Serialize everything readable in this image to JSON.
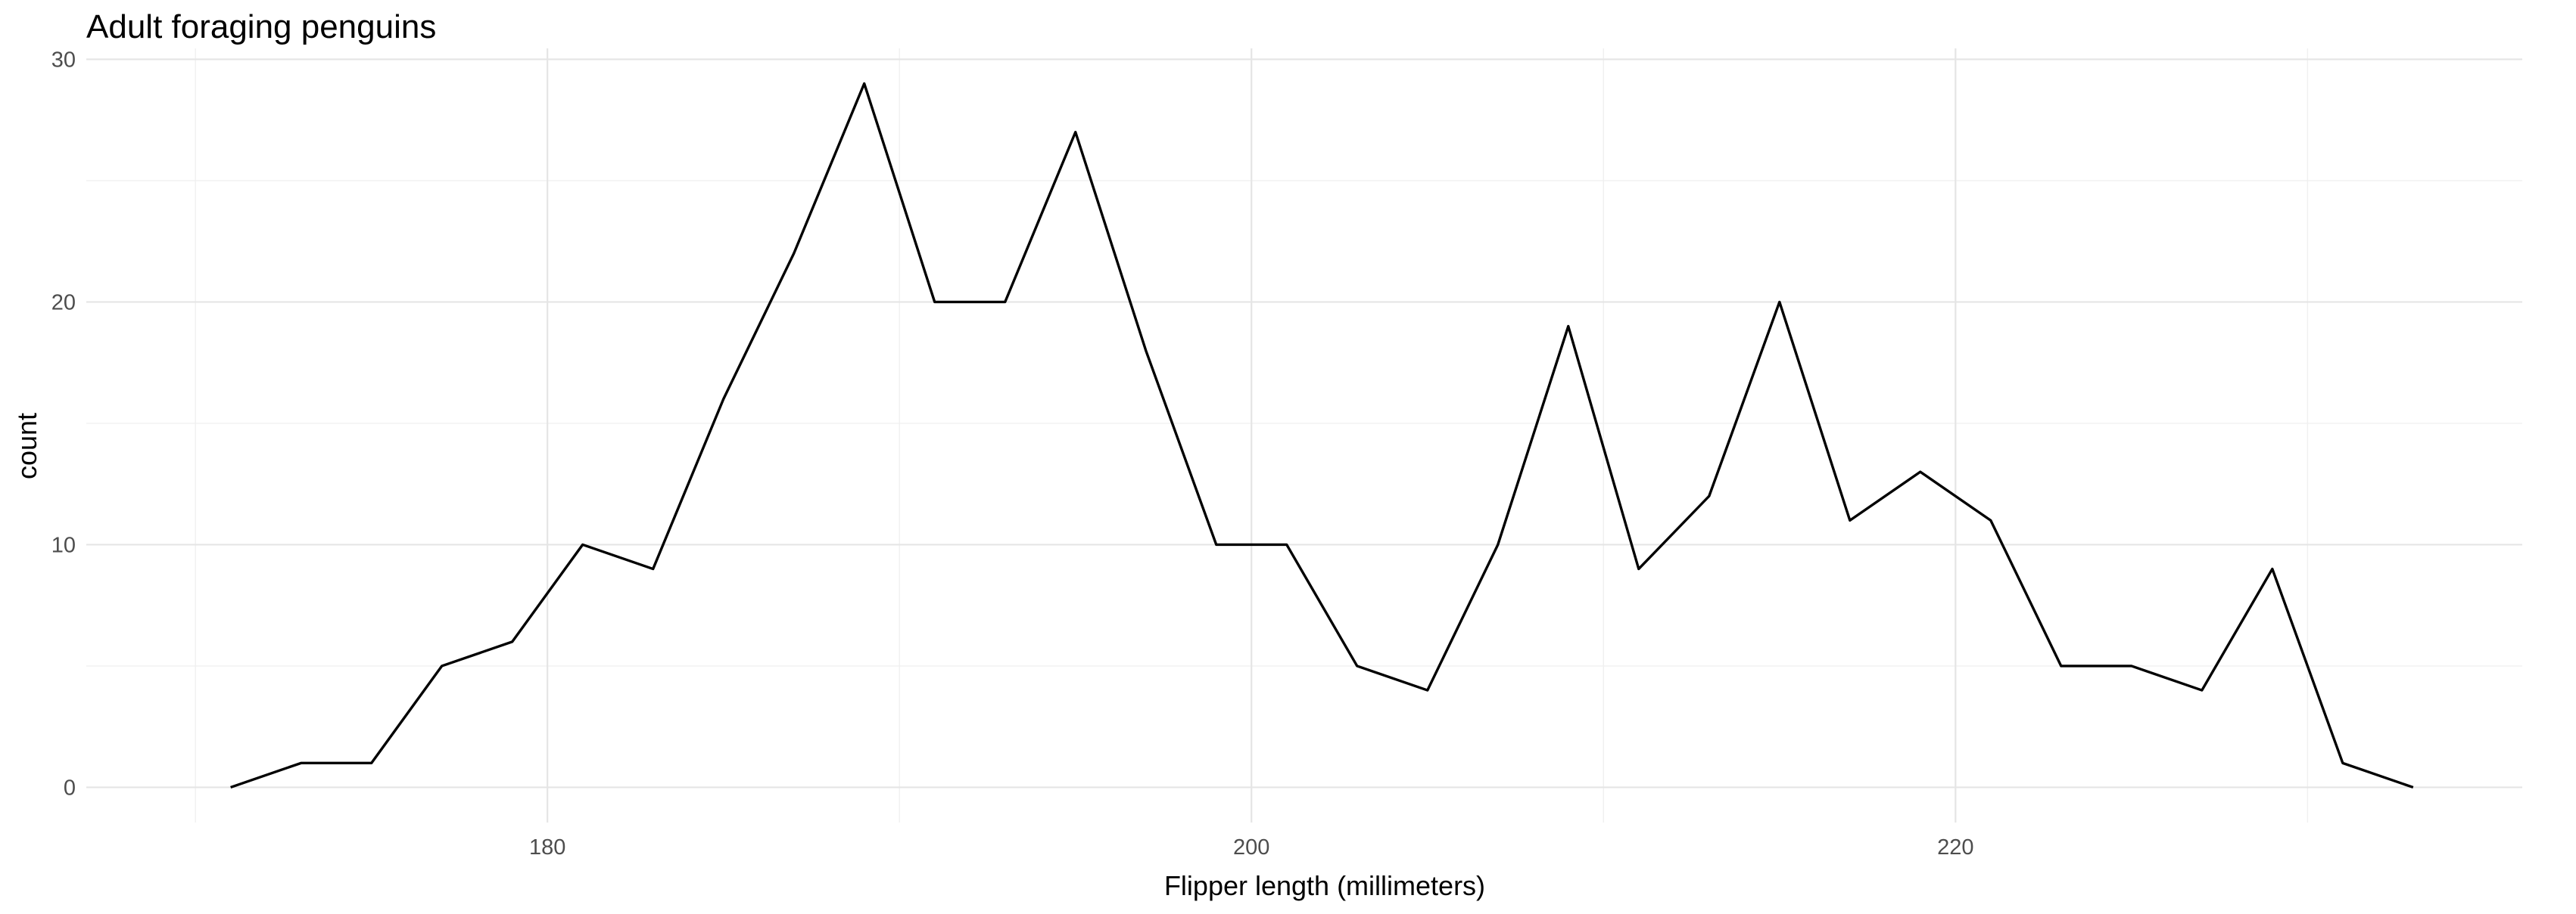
{
  "chart_data": {
    "type": "line",
    "title": "Adult foraging penguins",
    "xlabel": "Flipper length (millimeters)",
    "ylabel": "count",
    "xlim": [
      166.9,
      236.1
    ],
    "ylim": [
      -1.45,
      30.45
    ],
    "x_ticks": [
      180,
      200,
      220
    ],
    "x_minor_ticks": [
      170,
      190,
      210,
      230
    ],
    "y_ticks": [
      0,
      10,
      20,
      30
    ],
    "y_minor_ticks": [
      5,
      15,
      25
    ],
    "grid": true,
    "legend": "none",
    "x": [
      171,
      173,
      175,
      177,
      179,
      181,
      183,
      185,
      187,
      189,
      191,
      193,
      195,
      197,
      199,
      201,
      203,
      205,
      207,
      209,
      211,
      213,
      215,
      217,
      219,
      221,
      223,
      225,
      227,
      229,
      231,
      233
    ],
    "series": [
      {
        "color": "#000000",
        "values": [
          0,
          1,
          1,
          5,
          6,
          10,
          9,
          16,
          22,
          29,
          20,
          20,
          27,
          18,
          10,
          10,
          5,
          4,
          10,
          19,
          9,
          12,
          20,
          11,
          13,
          11,
          5,
          5,
          4,
          9,
          1,
          0
        ]
      }
    ]
  }
}
